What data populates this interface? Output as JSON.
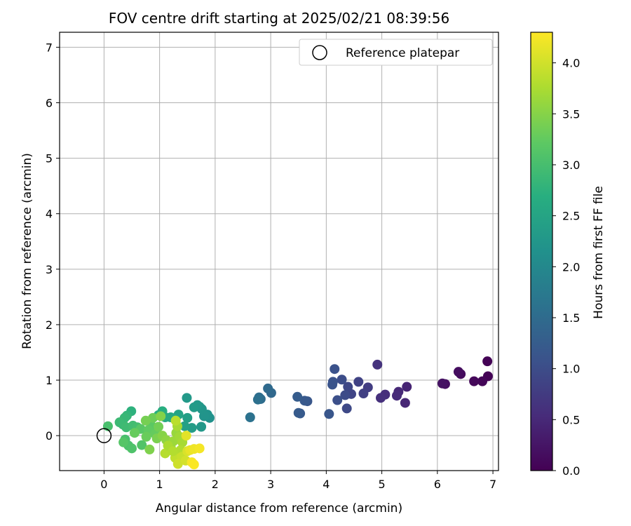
{
  "chart_data": {
    "type": "scatter",
    "title": "FOV centre drift starting at 2025/02/21 08:39:56",
    "xlabel": "Angular distance from reference (arcmin)",
    "ylabel": "Rotation from reference (arcmin)",
    "xlim": [
      -0.8,
      7.1
    ],
    "ylim": [
      -0.63,
      7.27
    ],
    "xticks": [
      "0",
      "1",
      "2",
      "3",
      "4",
      "5",
      "6",
      "7"
    ],
    "yticks": [
      "0",
      "1",
      "2",
      "3",
      "4",
      "5",
      "6",
      "7"
    ],
    "grid": true,
    "legend": {
      "position": "top-right",
      "entries": [
        "Reference platepar"
      ]
    },
    "colorbar": {
      "label": "Hours from first FF file",
      "range": [
        0.0,
        4.3
      ],
      "ticks": [
        "0.0",
        "0.5",
        "1.0",
        "1.5",
        "2.0",
        "2.5",
        "3.0",
        "3.5",
        "4.0"
      ],
      "colormap": "viridis"
    },
    "reference_point": {
      "x": 0,
      "y": 0
    },
    "points": [
      [
        6.9,
        1.34,
        0.02
      ],
      [
        6.91,
        1.07,
        0.03
      ],
      [
        6.81,
        0.98,
        0.06
      ],
      [
        6.66,
        0.98,
        0.09
      ],
      [
        6.42,
        1.11,
        0.13
      ],
      [
        6.38,
        1.15,
        0.15
      ],
      [
        6.14,
        0.93,
        0.18
      ],
      [
        6.09,
        0.94,
        0.21
      ],
      [
        5.45,
        0.88,
        0.44
      ],
      [
        5.42,
        0.59,
        0.47
      ],
      [
        5.3,
        0.79,
        0.5
      ],
      [
        5.27,
        0.72,
        0.53
      ],
      [
        5.06,
        0.74,
        0.57
      ],
      [
        4.98,
        0.68,
        0.6
      ],
      [
        4.92,
        1.28,
        0.63
      ],
      [
        4.75,
        0.87,
        0.78
      ],
      [
        4.67,
        0.76,
        0.82
      ],
      [
        4.58,
        0.97,
        0.85
      ],
      [
        4.45,
        0.75,
        0.88
      ],
      [
        4.39,
        0.88,
        0.92
      ],
      [
        4.37,
        0.49,
        0.95
      ],
      [
        4.34,
        0.73,
        0.98
      ],
      [
        4.28,
        1.01,
        1.01
      ],
      [
        4.2,
        0.64,
        1.04
      ],
      [
        4.15,
        1.2,
        1.07
      ],
      [
        4.12,
        0.97,
        1.09
      ],
      [
        4.11,
        0.92,
        1.11
      ],
      [
        4.05,
        0.39,
        1.14
      ],
      [
        3.66,
        0.62,
        1.16
      ],
      [
        3.61,
        0.63,
        1.19
      ],
      [
        3.53,
        0.4,
        1.21
      ],
      [
        3.5,
        0.41,
        1.23
      ],
      [
        3.48,
        0.7,
        1.25
      ],
      [
        3.01,
        0.77,
        1.45
      ],
      [
        2.95,
        0.85,
        1.48
      ],
      [
        2.82,
        0.66,
        1.52
      ],
      [
        2.79,
        0.69,
        1.55
      ],
      [
        2.77,
        0.65,
        1.58
      ],
      [
        2.63,
        0.33,
        1.62
      ],
      [
        1.9,
        0.32,
        2.15
      ],
      [
        1.86,
        0.38,
        2.18
      ],
      [
        1.8,
        0.35,
        2.2
      ],
      [
        1.76,
        0.48,
        2.23
      ],
      [
        1.72,
        0.52,
        2.25
      ],
      [
        1.75,
        0.16,
        2.28
      ],
      [
        1.68,
        0.55,
        2.3
      ],
      [
        1.62,
        0.51,
        2.33
      ],
      [
        1.58,
        0.14,
        2.36
      ],
      [
        1.49,
        0.68,
        2.3
      ],
      [
        1.5,
        0.32,
        2.4
      ],
      [
        1.45,
        0.17,
        2.43
      ],
      [
        1.34,
        0.38,
        2.48
      ],
      [
        1.28,
        0.3,
        2.53
      ],
      [
        1.2,
        0.33,
        2.58
      ],
      [
        1.1,
        0.33,
        2.62
      ],
      [
        1.05,
        0.44,
        2.68
      ],
      [
        0.98,
        0.37,
        2.7
      ],
      [
        0.49,
        0.44,
        2.75
      ],
      [
        0.41,
        0.36,
        2.82
      ],
      [
        0.37,
        0.32,
        2.86
      ],
      [
        0.34,
        0.2,
        2.88
      ],
      [
        0.28,
        0.24,
        2.9
      ],
      [
        0.4,
        0.15,
        2.93
      ],
      [
        0.52,
        0.18,
        2.96
      ],
      [
        0.6,
        0.15,
        2.99
      ],
      [
        0.38,
        -0.07,
        3.02
      ],
      [
        0.44,
        -0.18,
        3.05
      ],
      [
        0.5,
        -0.23,
        3.08
      ],
      [
        0.68,
        -0.17,
        3.11
      ],
      [
        0.35,
        -0.12,
        3.14
      ],
      [
        0.66,
        0.12,
        3.17
      ],
      [
        0.85,
        0.18,
        3.2
      ],
      [
        0.8,
        0.1,
        3.24
      ],
      [
        0.92,
        0.03,
        3.27
      ],
      [
        0.76,
        -0.02,
        3.3
      ],
      [
        0.88,
        0.32,
        3.33
      ],
      [
        0.98,
        0.16,
        3.36
      ],
      [
        0.75,
        0.27,
        3.39
      ],
      [
        0.07,
        0.17,
        3.02
      ],
      [
        0.55,
        0.05,
        3.28
      ],
      [
        0.95,
        -0.05,
        3.42
      ],
      [
        0.82,
        -0.25,
        3.45
      ],
      [
        1.05,
        0.0,
        3.5
      ],
      [
        1.02,
        0.35,
        3.48
      ],
      [
        1.12,
        -0.08,
        3.55
      ],
      [
        1.2,
        -0.2,
        3.6
      ],
      [
        1.25,
        -0.1,
        3.65
      ],
      [
        1.3,
        0.05,
        3.62
      ],
      [
        1.36,
        -0.02,
        3.68
      ],
      [
        1.41,
        -0.12,
        3.72
      ],
      [
        1.38,
        -0.26,
        3.78
      ],
      [
        1.32,
        0.17,
        3.72
      ],
      [
        1.1,
        -0.32,
        3.82
      ],
      [
        1.28,
        -0.4,
        3.9
      ],
      [
        1.4,
        -0.38,
        3.94
      ],
      [
        1.33,
        -0.51,
        3.98
      ],
      [
        1.47,
        -0.45,
        4.02
      ],
      [
        1.5,
        -0.28,
        4.06
      ],
      [
        1.48,
        0.0,
        4.12
      ],
      [
        1.55,
        -0.26,
        4.16
      ],
      [
        1.62,
        -0.24,
        4.2
      ],
      [
        1.72,
        -0.23,
        4.24
      ],
      [
        1.58,
        -0.48,
        4.26
      ],
      [
        1.62,
        -0.52,
        4.28
      ],
      [
        1.29,
        0.27,
        3.85
      ],
      [
        1.15,
        -0.18,
        3.74
      ],
      [
        1.24,
        -0.28,
        3.8
      ]
    ]
  }
}
